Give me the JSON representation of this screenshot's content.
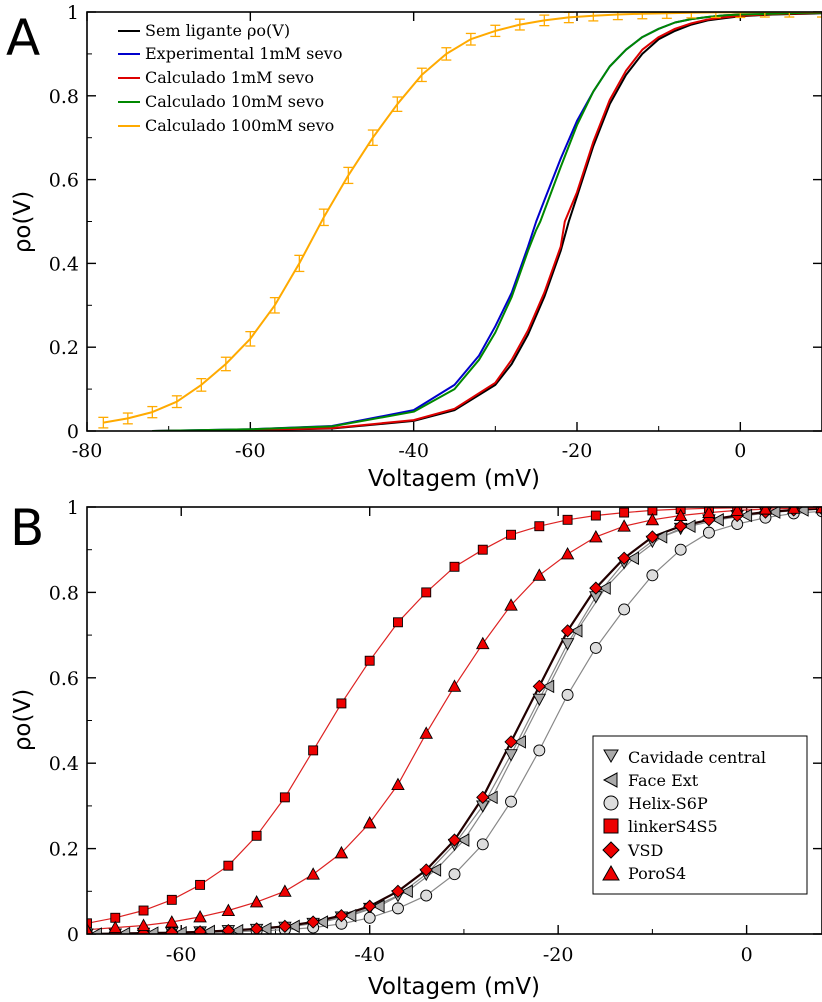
{
  "chart_data": [
    {
      "panel": "A",
      "type": "line",
      "xlabel": "Voltagem (mV)",
      "ylabel": "ρo(V)",
      "xlim": [
        -80,
        10
      ],
      "ylim": [
        0,
        1
      ],
      "x_ticks": [
        "-80",
        "-60",
        "-40",
        "-20",
        "0"
      ],
      "y_ticks": [
        "0",
        "0.2",
        "0.4",
        "0.6",
        "0.8",
        "1"
      ],
      "legend_position": "top-left",
      "series": [
        {
          "name": "Sem ligante ρo(V)",
          "color": "#000000",
          "x": [
            -72,
            -60,
            -50,
            -40,
            -35,
            -30,
            -28,
            -26,
            -24,
            -22,
            -21,
            -20,
            -18,
            -16,
            -14,
            -12,
            -10,
            -8,
            -6,
            -4,
            -2,
            0,
            4,
            8,
            10
          ],
          "y": [
            0.0,
            0.002,
            0.006,
            0.024,
            0.05,
            0.11,
            0.16,
            0.23,
            0.32,
            0.43,
            0.5,
            0.56,
            0.68,
            0.78,
            0.85,
            0.9,
            0.935,
            0.955,
            0.97,
            0.98,
            0.985,
            0.99,
            0.994,
            0.996,
            0.997
          ]
        },
        {
          "name": "Experimental 1mM sevo",
          "color": "#0000cc",
          "x": [
            -72,
            -60,
            -50,
            -40,
            -35,
            -32,
            -30,
            -28,
            -26,
            -25,
            -24,
            -22,
            -20,
            -18,
            -16,
            -14,
            -12,
            -10,
            -8,
            -6,
            -4,
            -2,
            0,
            4,
            8,
            10
          ],
          "y": [
            0.0,
            0.004,
            0.012,
            0.05,
            0.11,
            0.18,
            0.25,
            0.33,
            0.44,
            0.5,
            0.55,
            0.65,
            0.74,
            0.81,
            0.87,
            0.91,
            0.94,
            0.96,
            0.975,
            0.983,
            0.988,
            0.992,
            0.994,
            0.996,
            0.998,
            0.998
          ]
        },
        {
          "name": "Calculado 1mM sevo",
          "color": "#dd0000",
          "x": [
            -72,
            -60,
            -50,
            -40,
            -35,
            -30,
            -28,
            -26,
            -24,
            -22,
            -21.5,
            -20,
            -18,
            -16,
            -14,
            -12,
            -10,
            -8,
            -6,
            -4,
            -2,
            0,
            4,
            8,
            10
          ],
          "y": [
            0.0,
            0.002,
            0.007,
            0.026,
            0.053,
            0.115,
            0.17,
            0.24,
            0.33,
            0.44,
            0.5,
            0.57,
            0.69,
            0.79,
            0.86,
            0.91,
            0.94,
            0.96,
            0.973,
            0.982,
            0.987,
            0.991,
            0.995,
            0.997,
            0.998
          ]
        },
        {
          "name": "Calculado 10mM sevo",
          "color": "#008800",
          "x": [
            -72,
            -60,
            -50,
            -40,
            -35,
            -32,
            -30,
            -28,
            -26,
            -25,
            -24.5,
            -22,
            -20,
            -18,
            -16,
            -14,
            -12,
            -10,
            -8,
            -6,
            -4,
            -2,
            0,
            4,
            8,
            10
          ],
          "y": [
            0.0,
            0.004,
            0.011,
            0.046,
            0.1,
            0.17,
            0.235,
            0.32,
            0.43,
            0.48,
            0.5,
            0.63,
            0.73,
            0.81,
            0.87,
            0.91,
            0.94,
            0.96,
            0.975,
            0.983,
            0.988,
            0.992,
            0.994,
            0.996,
            0.998,
            0.998
          ]
        },
        {
          "name": "Calculado 100mM sevo",
          "color": "#ffaa00",
          "x": [
            -78,
            -75,
            -72,
            -69,
            -66,
            -63,
            -60,
            -57,
            -54,
            -51,
            -48,
            -45,
            -42,
            -39,
            -36,
            -33,
            -30,
            -27,
            -24,
            -21,
            -18,
            -15,
            -12,
            -9,
            -6,
            -3,
            0,
            3,
            6,
            10
          ],
          "y": [
            0.02,
            0.03,
            0.045,
            0.07,
            0.11,
            0.16,
            0.22,
            0.3,
            0.4,
            0.51,
            0.61,
            0.7,
            0.78,
            0.85,
            0.9,
            0.935,
            0.955,
            0.97,
            0.98,
            0.987,
            0.991,
            0.994,
            0.996,
            0.997,
            0.998,
            0.999,
            0.999,
            1.0,
            1.0,
            1.0
          ],
          "error_bars": true
        }
      ]
    },
    {
      "panel": "B",
      "type": "scatter",
      "xlabel": "Voltagem (mV)",
      "ylabel": "ρo(V)",
      "xlim": [
        -70,
        8
      ],
      "ylim": [
        0,
        1
      ],
      "x_ticks": [
        "-60",
        "-40",
        "-20",
        "0"
      ],
      "y_ticks": [
        "0",
        "0.2",
        "0.4",
        "0.6",
        "0.8",
        "1"
      ],
      "legend_position": "bottom-right",
      "series": [
        {
          "name": "Cavidade central",
          "marker": "triangle-down",
          "color": "#aaaaaa",
          "x": [
            -70,
            -67,
            -64,
            -61,
            -58,
            -55,
            -52,
            -49,
            -46,
            -43,
            -40,
            -37,
            -34,
            -31,
            -28,
            -25,
            -22,
            -19,
            -16,
            -13,
            -10,
            -7,
            -4,
            -1,
            2,
            5,
            8
          ],
          "y": [
            0.0,
            0.0,
            0.002,
            0.003,
            0.005,
            0.008,
            0.011,
            0.016,
            0.025,
            0.04,
            0.06,
            0.09,
            0.14,
            0.21,
            0.3,
            0.42,
            0.55,
            0.68,
            0.79,
            0.87,
            0.92,
            0.95,
            0.97,
            0.98,
            0.988,
            0.993,
            0.996
          ]
        },
        {
          "name": "Face Ext",
          "marker": "triangle-left",
          "color": "#aaaaaa",
          "x": [
            -69,
            -66,
            -63,
            -60,
            -57,
            -54,
            -51,
            -48,
            -45,
            -42,
            -39,
            -36,
            -33,
            -30,
            -27,
            -24,
            -21,
            -18,
            -15,
            -12,
            -9,
            -6,
            -3,
            0,
            3,
            6
          ],
          "y": [
            0.0,
            0.001,
            0.002,
            0.003,
            0.006,
            0.008,
            0.012,
            0.018,
            0.028,
            0.043,
            0.065,
            0.1,
            0.15,
            0.22,
            0.32,
            0.45,
            0.58,
            0.71,
            0.81,
            0.88,
            0.93,
            0.955,
            0.97,
            0.98,
            0.988,
            0.993
          ]
        },
        {
          "name": "Helix-S6P",
          "marker": "circle",
          "color": "#dddddd",
          "x": [
            -70,
            -67,
            -64,
            -61,
            -58,
            -55,
            -52,
            -49,
            -46,
            -43,
            -40,
            -37,
            -34,
            -31,
            -28,
            -25,
            -22,
            -19,
            -16,
            -13,
            -10,
            -7,
            -4,
            -1,
            2,
            5,
            8
          ],
          "y": [
            0.0,
            0.0,
            0.001,
            0.002,
            0.003,
            0.005,
            0.007,
            0.01,
            0.015,
            0.024,
            0.038,
            0.06,
            0.09,
            0.14,
            0.21,
            0.31,
            0.43,
            0.56,
            0.67,
            0.76,
            0.84,
            0.9,
            0.94,
            0.96,
            0.975,
            0.985,
            0.99
          ]
        },
        {
          "name": "linkerS4S5",
          "marker": "square",
          "color": "#ee0000",
          "x": [
            -70,
            -67,
            -64,
            -61,
            -58,
            -55,
            -52,
            -49,
            -46,
            -43,
            -40,
            -37,
            -34,
            -31,
            -28,
            -25,
            -22,
            -19,
            -16,
            -13,
            -10,
            -7,
            -4,
            -1,
            2,
            5,
            8
          ],
          "y": [
            0.025,
            0.038,
            0.055,
            0.08,
            0.115,
            0.16,
            0.23,
            0.32,
            0.43,
            0.54,
            0.64,
            0.73,
            0.8,
            0.86,
            0.9,
            0.935,
            0.955,
            0.97,
            0.98,
            0.987,
            0.992,
            0.995,
            0.997,
            0.998,
            0.999,
            1.0,
            1.0
          ]
        },
        {
          "name": "VSD",
          "marker": "diamond",
          "color": "#ee0000",
          "x": [
            -70,
            -67,
            -64,
            -61,
            -58,
            -55,
            -52,
            -49,
            -46,
            -43,
            -40,
            -37,
            -34,
            -31,
            -28,
            -25,
            -22,
            -19,
            -16,
            -13,
            -10,
            -7,
            -4,
            -1,
            2,
            5,
            8
          ],
          "y": [
            0.0,
            0.001,
            0.002,
            0.003,
            0.005,
            0.008,
            0.012,
            0.018,
            0.028,
            0.043,
            0.065,
            0.1,
            0.15,
            0.22,
            0.32,
            0.45,
            0.58,
            0.71,
            0.81,
            0.88,
            0.93,
            0.955,
            0.97,
            0.98,
            0.988,
            0.993,
            0.996
          ]
        },
        {
          "name": "PoroS4",
          "marker": "triangle-up",
          "color": "#ee0000",
          "x": [
            -70,
            -67,
            -64,
            -61,
            -58,
            -55,
            -52,
            -49,
            -46,
            -43,
            -40,
            -37,
            -34,
            -31,
            -28,
            -25,
            -22,
            -19,
            -16,
            -13,
            -10,
            -7,
            -4,
            -1,
            2,
            5,
            8
          ],
          "y": [
            0.01,
            0.015,
            0.02,
            0.028,
            0.04,
            0.055,
            0.075,
            0.1,
            0.14,
            0.19,
            0.26,
            0.35,
            0.47,
            0.58,
            0.68,
            0.77,
            0.84,
            0.89,
            0.93,
            0.955,
            0.97,
            0.98,
            0.987,
            0.992,
            0.995,
            0.997,
            0.998
          ]
        }
      ]
    }
  ],
  "legend_a": [
    "Sem ligante ρo(V)",
    "Experimental 1mM sevo",
    "Calculado 1mM sevo",
    "Calculado 10mM sevo",
    "Calculado 100mM sevo"
  ],
  "legend_b": [
    "Cavidade central",
    "Face Ext",
    "Helix-S6P",
    "linkerS4S5",
    "VSD",
    "PoroS4"
  ]
}
